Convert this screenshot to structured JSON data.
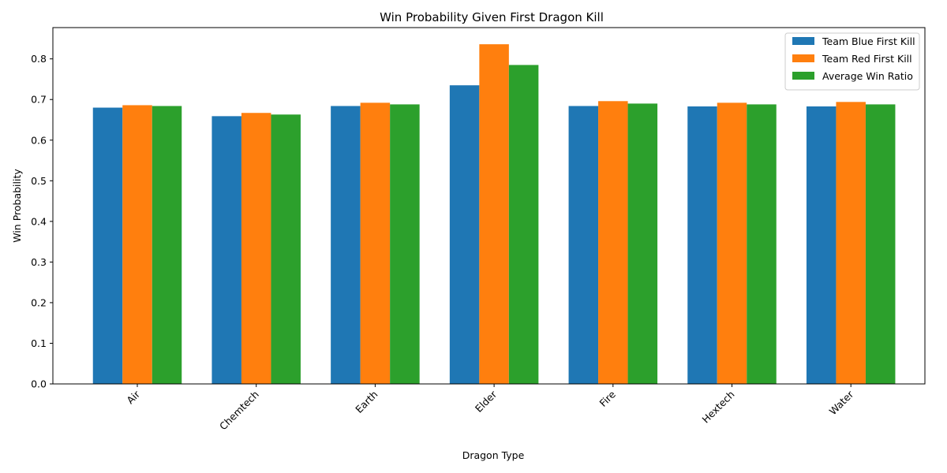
{
  "chart_data": {
    "type": "bar",
    "title": "Win Probability Given First Dragon Kill",
    "xlabel": "Dragon Type",
    "ylabel": "Win Probability",
    "categories": [
      "Air",
      "Chemtech",
      "Earth",
      "Elder",
      "Fire",
      "Hextech",
      "Water"
    ],
    "series": [
      {
        "name": "Team Blue First Kill",
        "color": "#1f77b4",
        "values": [
          0.68,
          0.659,
          0.684,
          0.735,
          0.684,
          0.683,
          0.683
        ]
      },
      {
        "name": "Team Red First Kill",
        "color": "#ff7f0e",
        "values": [
          0.686,
          0.667,
          0.692,
          0.836,
          0.696,
          0.692,
          0.694
        ]
      },
      {
        "name": "Average Win Ratio",
        "color": "#2ca02c",
        "values": [
          0.684,
          0.663,
          0.688,
          0.785,
          0.69,
          0.688,
          0.688
        ]
      }
    ],
    "ylim": [
      0,
      0.877
    ],
    "yticks": [
      "0.0",
      "0.1",
      "0.2",
      "0.3",
      "0.4",
      "0.5",
      "0.6",
      "0.7",
      "0.8"
    ],
    "grid": false,
    "legend_position": "top-right"
  }
}
